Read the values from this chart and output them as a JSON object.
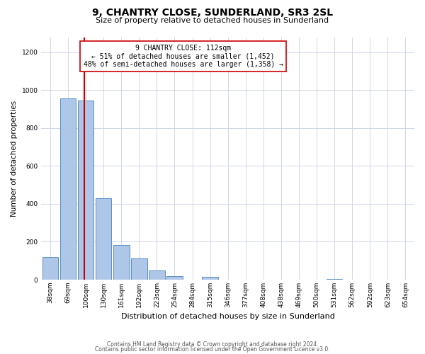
{
  "title": "9, CHANTRY CLOSE, SUNDERLAND, SR3 2SL",
  "subtitle": "Size of property relative to detached houses in Sunderland",
  "xlabel": "Distribution of detached houses by size in Sunderland",
  "ylabel": "Number of detached properties",
  "bin_labels": [
    "38sqm",
    "69sqm",
    "100sqm",
    "130sqm",
    "161sqm",
    "192sqm",
    "223sqm",
    "254sqm",
    "284sqm",
    "315sqm",
    "346sqm",
    "377sqm",
    "408sqm",
    "438sqm",
    "469sqm",
    "500sqm",
    "531sqm",
    "562sqm",
    "592sqm",
    "623sqm",
    "654sqm"
  ],
  "bar_values": [
    120,
    955,
    945,
    430,
    185,
    112,
    47,
    18,
    0,
    15,
    0,
    0,
    0,
    0,
    0,
    0,
    5,
    0,
    0,
    0,
    0
  ],
  "bar_color": "#aec6e8",
  "bar_edge_color": "#5a8fc2",
  "marker_line_color": "#cc0000",
  "annotation_line1": "9 CHANTRY CLOSE: 112sqm",
  "annotation_line2": "← 51% of detached houses are smaller (1,452)",
  "annotation_line3": "48% of semi-detached houses are larger (1,358) →",
  "annotation_box_color": "#ffffff",
  "annotation_box_edge": "#cc0000",
  "ylim": [
    0,
    1280
  ],
  "yticks": [
    0,
    200,
    400,
    600,
    800,
    1000,
    1200
  ],
  "footer1": "Contains HM Land Registry data © Crown copyright and database right 2024.",
  "footer2": "Contains public sector information licensed under the Open Government Licence v3.0.",
  "background_color": "#ffffff",
  "grid_color": "#d0d8e8",
  "title_fontsize": 10,
  "subtitle_fontsize": 8,
  "ylabel_fontsize": 7.5,
  "xlabel_fontsize": 8,
  "tick_fontsize": 6.5,
  "annotation_fontsize": 7,
  "footer_fontsize": 5.5
}
